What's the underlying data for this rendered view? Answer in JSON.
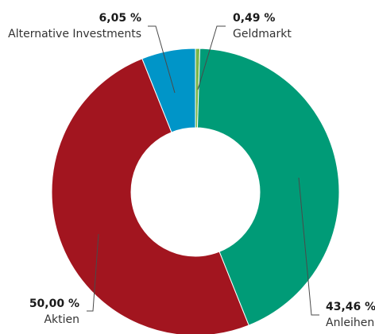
{
  "chart_data": {
    "type": "pie",
    "style": "donut",
    "title": "",
    "legend": "none",
    "categories": [
      "Geldmarkt",
      "Anleihen",
      "Aktien",
      "Alternative Investments"
    ],
    "values": [
      0.49,
      43.46,
      50.0,
      6.05
    ],
    "value_labels": [
      "0,49 %",
      "43,46 %",
      "50,00 %",
      "6,05 %"
    ],
    "colors": [
      "#7ab648",
      "#009b77",
      "#a2151f",
      "#0095c8"
    ]
  }
}
